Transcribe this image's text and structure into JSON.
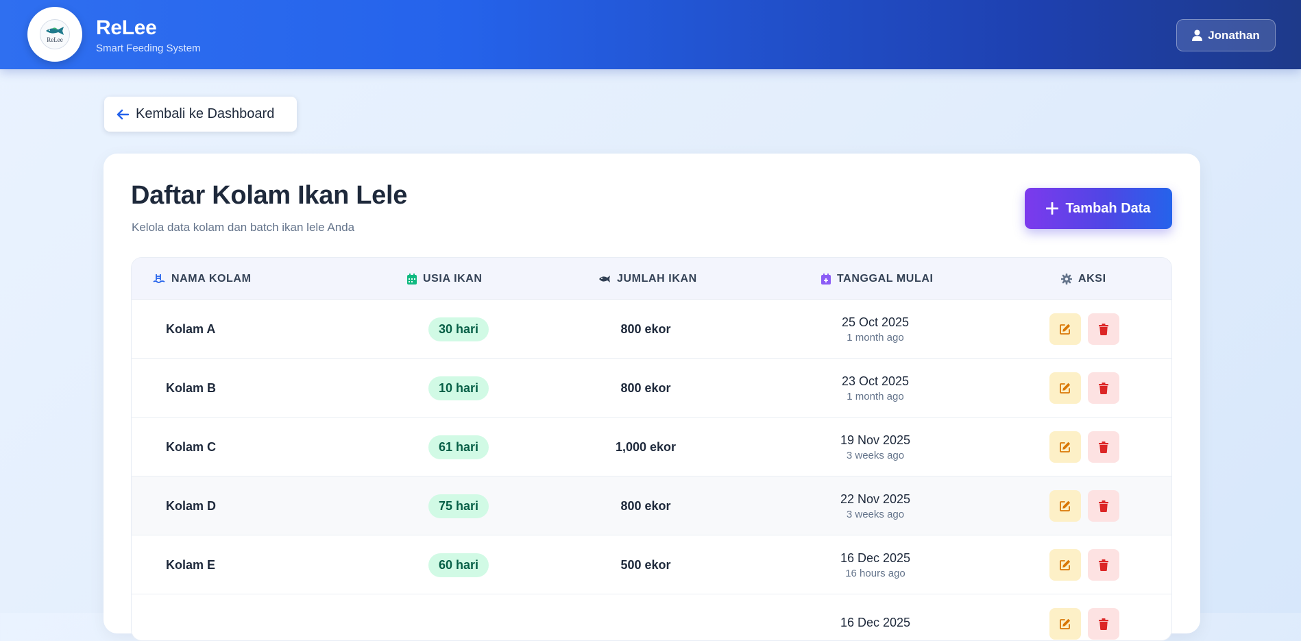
{
  "brand": {
    "title": "ReLee",
    "subtitle": "Smart Feeding System",
    "logo_text": "ReLee"
  },
  "user": {
    "name": "Jonathan"
  },
  "back_button": {
    "label": "Kembali ke Dashboard"
  },
  "page": {
    "title": "Daftar Kolam Ikan Lele",
    "subtitle": "Kelola data kolam dan batch ikan lele Anda",
    "add_button": "Tambah Data"
  },
  "table": {
    "headers": {
      "name": "NAMA KOLAM",
      "age": "USIA IKAN",
      "count": "JUMLAH IKAN",
      "start": "TANGGAL MULAI",
      "actions": "AKSI"
    },
    "rows": [
      {
        "name": "Kolam A",
        "age": "30 hari",
        "count": "800 ekor",
        "date": "25 Oct 2025",
        "relative": "1 month ago"
      },
      {
        "name": "Kolam B",
        "age": "10 hari",
        "count": "800 ekor",
        "date": "23 Oct 2025",
        "relative": "1 month ago"
      },
      {
        "name": "Kolam C",
        "age": "61 hari",
        "count": "1,000 ekor",
        "date": "19 Nov 2025",
        "relative": "3 weeks ago"
      },
      {
        "name": "Kolam D",
        "age": "75 hari",
        "count": "800 ekor",
        "date": "22 Nov 2025",
        "relative": "3 weeks ago"
      },
      {
        "name": "Kolam E",
        "age": "60 hari",
        "count": "500 ekor",
        "date": "16 Dec 2025",
        "relative": "16 hours ago"
      },
      {
        "name": "",
        "age": "",
        "count": "",
        "date": "16 Dec 2025",
        "relative": ""
      }
    ]
  },
  "colors": {
    "header_start": "#2f6ff0",
    "header_end": "#1e3a8a",
    "badge_bg": "#d1fae5",
    "badge_text": "#065f46",
    "edit_bg": "#fdf0c7",
    "edit_icon": "#d97706",
    "delete_bg": "#fde2e2",
    "delete_icon": "#dc2626",
    "add_button_start": "#7c3aed",
    "add_button_end": "#2563eb"
  },
  "icons": {
    "user": "user-icon",
    "back": "arrow-left-icon",
    "add": "plus-icon",
    "name_header": "swimming-pool-icon",
    "age_header": "calendar-icon",
    "count_header": "fish-icon",
    "start_header": "calendar-plus-icon",
    "actions_header": "gear-icon",
    "edit": "edit-icon",
    "delete": "trash-icon"
  }
}
